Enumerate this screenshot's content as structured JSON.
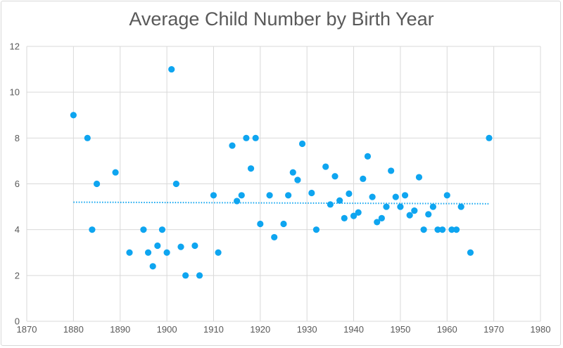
{
  "chart_data": {
    "type": "scatter",
    "title": "Average Child Number by Birth Year",
    "xlabel": "",
    "ylabel": "",
    "xlim": [
      1870,
      1980
    ],
    "ylim": [
      0,
      12
    ],
    "x_ticks": [
      "1870",
      "1880",
      "1890",
      "1900",
      "1910",
      "1920",
      "1930",
      "1940",
      "1950",
      "1960",
      "1970",
      "1980"
    ],
    "y_ticks": [
      "0",
      "2",
      "4",
      "6",
      "8",
      "10",
      "12"
    ],
    "grid": true,
    "legend": "none",
    "colors": {
      "marker": "#0ea5f0",
      "trendline": "#0ea5f0",
      "grid": "#d9d9d9",
      "text": "#595959"
    },
    "trendline": {
      "type": "linear",
      "x": [
        1880,
        1969
      ],
      "y": [
        5.2,
        5.13
      ]
    },
    "points": [
      {
        "x": 1880,
        "y": 9
      },
      {
        "x": 1883,
        "y": 8
      },
      {
        "x": 1884,
        "y": 4
      },
      {
        "x": 1885,
        "y": 6
      },
      {
        "x": 1889,
        "y": 6.5
      },
      {
        "x": 1892,
        "y": 3
      },
      {
        "x": 1895,
        "y": 4
      },
      {
        "x": 1896,
        "y": 3
      },
      {
        "x": 1897,
        "y": 2.4
      },
      {
        "x": 1898,
        "y": 3.3
      },
      {
        "x": 1899,
        "y": 4
      },
      {
        "x": 1900,
        "y": 3
      },
      {
        "x": 1901,
        "y": 11
      },
      {
        "x": 1902,
        "y": 6
      },
      {
        "x": 1903,
        "y": 3.25
      },
      {
        "x": 1904,
        "y": 2
      },
      {
        "x": 1906,
        "y": 3.3
      },
      {
        "x": 1907,
        "y": 2
      },
      {
        "x": 1910,
        "y": 5.5
      },
      {
        "x": 1911,
        "y": 3
      },
      {
        "x": 1914,
        "y": 7.67
      },
      {
        "x": 1915,
        "y": 5.25
      },
      {
        "x": 1916,
        "y": 5.5
      },
      {
        "x": 1917,
        "y": 8
      },
      {
        "x": 1918,
        "y": 6.67
      },
      {
        "x": 1919,
        "y": 8
      },
      {
        "x": 1920,
        "y": 4.25
      },
      {
        "x": 1922,
        "y": 5.5
      },
      {
        "x": 1923,
        "y": 3.67
      },
      {
        "x": 1925,
        "y": 4.25
      },
      {
        "x": 1926,
        "y": 5.5
      },
      {
        "x": 1927,
        "y": 6.5
      },
      {
        "x": 1928,
        "y": 6.17
      },
      {
        "x": 1929,
        "y": 7.75
      },
      {
        "x": 1931,
        "y": 5.6
      },
      {
        "x": 1932,
        "y": 4
      },
      {
        "x": 1934,
        "y": 6.75
      },
      {
        "x": 1935,
        "y": 5.1
      },
      {
        "x": 1936,
        "y": 6.33
      },
      {
        "x": 1937,
        "y": 5.27
      },
      {
        "x": 1938,
        "y": 4.5
      },
      {
        "x": 1939,
        "y": 5.57
      },
      {
        "x": 1940,
        "y": 4.6
      },
      {
        "x": 1941,
        "y": 4.75
      },
      {
        "x": 1942,
        "y": 6.22
      },
      {
        "x": 1943,
        "y": 7.2
      },
      {
        "x": 1944,
        "y": 5.43
      },
      {
        "x": 1945,
        "y": 4.33
      },
      {
        "x": 1946,
        "y": 4.5
      },
      {
        "x": 1947,
        "y": 5
      },
      {
        "x": 1948,
        "y": 6.57
      },
      {
        "x": 1949,
        "y": 5.43
      },
      {
        "x": 1950,
        "y": 5
      },
      {
        "x": 1951,
        "y": 5.5
      },
      {
        "x": 1952,
        "y": 4.63
      },
      {
        "x": 1953,
        "y": 4.83
      },
      {
        "x": 1954,
        "y": 6.29
      },
      {
        "x": 1955,
        "y": 4
      },
      {
        "x": 1956,
        "y": 4.67
      },
      {
        "x": 1957,
        "y": 5
      },
      {
        "x": 1958,
        "y": 4
      },
      {
        "x": 1959,
        "y": 4
      },
      {
        "x": 1960,
        "y": 5.5
      },
      {
        "x": 1961,
        "y": 4
      },
      {
        "x": 1962,
        "y": 4
      },
      {
        "x": 1963,
        "y": 5
      },
      {
        "x": 1965,
        "y": 3
      },
      {
        "x": 1969,
        "y": 8
      }
    ]
  }
}
